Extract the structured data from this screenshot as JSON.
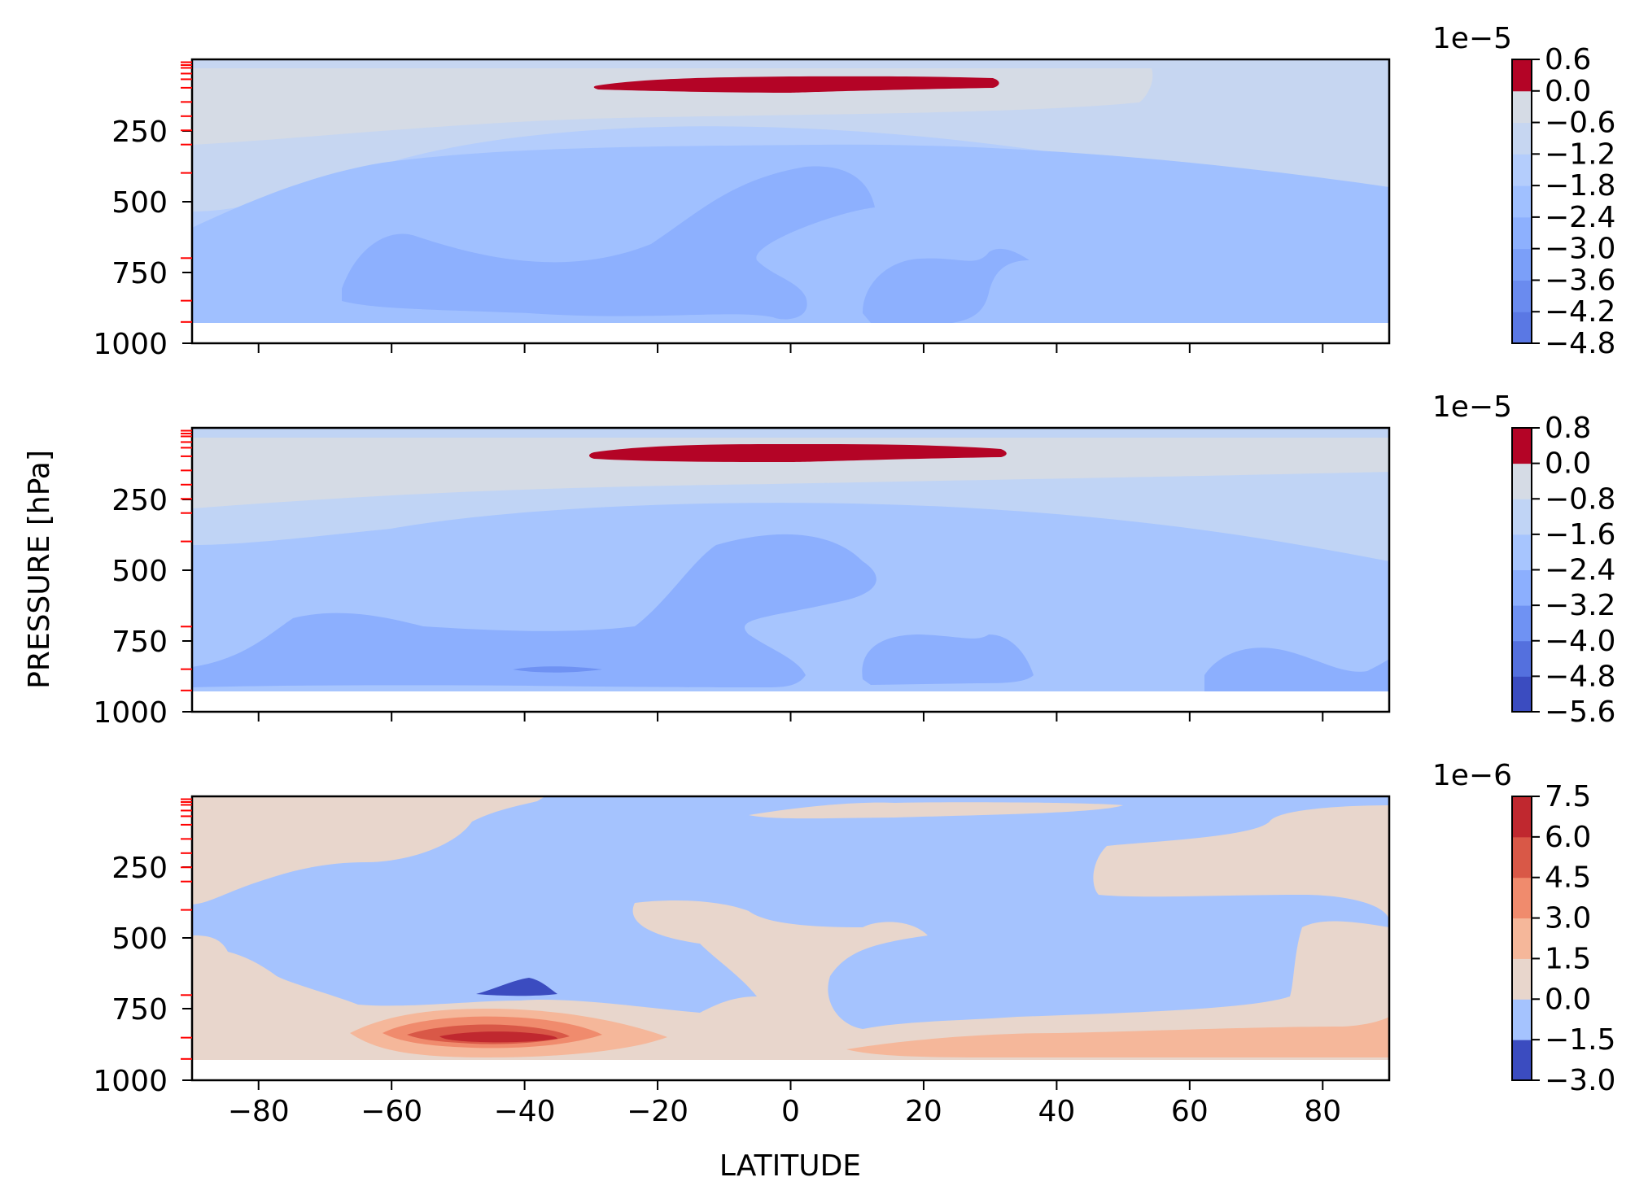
{
  "chart_data": {
    "type": "heatmap",
    "subtype": "filled-contour",
    "xlabel": "LATITUDE",
    "ylabel": "PRESSURE [hPa]",
    "xlim": [
      -90,
      90
    ],
    "ylim": [
      1000,
      0
    ],
    "y_inverted": true,
    "xticks": [
      -80,
      -60,
      -40,
      -20,
      0,
      20,
      40,
      60,
      80
    ],
    "yticks": [
      250,
      500,
      750,
      1000
    ],
    "data_bottom_hPa": 925,
    "model_levels_hPa": [
      10,
      20,
      30,
      50,
      70,
      100,
      150,
      200,
      250,
      300,
      400,
      700,
      850,
      925
    ],
    "level_marker_color": "#ff0000",
    "colormap": "coolwarm",
    "panels": [
      {
        "colorbar": {
          "scale_label": "1e−5",
          "levels": [
            -4.8,
            -4.2,
            -3.6,
            -3.0,
            -2.4,
            -1.8,
            -1.2,
            -0.6,
            0.0,
            0.6
          ],
          "tick_labels": [
            "0.6",
            "0.0",
            "−0.6",
            "−1.2",
            "−1.8",
            "−2.4",
            "−3.0",
            "−3.6",
            "−4.2",
            "−4.8"
          ],
          "colors": [
            "#5a78e4",
            "#6a8bef",
            "#7b9ff9",
            "#8db0fe",
            "#a0c0ff",
            "#b4cdfc",
            "#c6d6f1",
            "#d5dbe5",
            "#b40426"
          ]
        },
        "regions": [
          {
            "level_index": 8,
            "min_lat": -30,
            "max_lat": 31,
            "p_top": 75,
            "p_bottom": 105,
            "description": "positive band near 90 hPa"
          },
          {
            "level_index": 6,
            "min_lat": -90,
            "max_lat": 55,
            "p_top": 10,
            "p_bottom": 300
          },
          {
            "level_index": 4,
            "min_lat": -65,
            "max_lat": 13,
            "p_top": 450,
            "p_bottom": 900
          },
          {
            "level_index": 3,
            "min_lat": -60,
            "max_lat": -20,
            "p_top": 620,
            "p_bottom": 880
          },
          {
            "level_index": 3,
            "min_lat": 10,
            "max_lat": 35,
            "p_top": 680,
            "p_bottom": 910
          }
        ]
      },
      {
        "colorbar": {
          "scale_label": "1e−5",
          "levels": [
            -5.6,
            -4.8,
            -4.0,
            -3.2,
            -2.4,
            -1.6,
            -0.8,
            0.0,
            0.8
          ],
          "tick_labels": [
            "0.8",
            "0.0",
            "−0.8",
            "−1.6",
            "−2.4",
            "−3.2",
            "−4.0",
            "−4.8",
            "−5.6"
          ],
          "colors": [
            "#3b4cc0",
            "#5470de",
            "#6f92f3",
            "#8caffe",
            "#a7c5fe",
            "#c0d4f5",
            "#d5dbe5",
            "#b40426"
          ]
        },
        "regions": [
          {
            "level_index": 7,
            "min_lat": -30,
            "max_lat": 32,
            "p_top": 65,
            "p_bottom": 120
          },
          {
            "level_index": 5,
            "min_lat": -90,
            "max_lat": 90,
            "p_top": 10,
            "p_bottom": 400
          },
          {
            "level_index": 3,
            "min_lat": -70,
            "max_lat": 13,
            "p_top": 380,
            "p_bottom": 910
          },
          {
            "level_index": 2,
            "min_lat": -45,
            "max_lat": -18,
            "p_top": 830,
            "p_bottom": 860
          }
        ]
      },
      {
        "colorbar": {
          "scale_label": "1e−6",
          "levels": [
            -3.0,
            -1.5,
            0.0,
            1.5,
            3.0,
            4.5,
            6.0,
            7.5
          ],
          "tick_labels": [
            "7.5",
            "6.0",
            "4.5",
            "3.0",
            "1.5",
            "0.0",
            "−1.5",
            "−3.0"
          ],
          "colors": [
            "#3b4cc0",
            "#a5c3fe",
            "#e8d6cc",
            "#f5b79a",
            "#f08b6d",
            "#d95847",
            "#c0282f"
          ]
        },
        "regions": [
          {
            "level_index": 2,
            "description": "weak positive background"
          },
          {
            "level_index": 1,
            "min_lat": -90,
            "max_lat": 90,
            "p_top": 10,
            "p_bottom": 850,
            "description": "broad negative region"
          },
          {
            "level_index": 6,
            "min_lat": -48,
            "max_lat": -35,
            "p_top": 840,
            "p_bottom": 865,
            "description": "positive maximum near -42"
          },
          {
            "level_index": 0,
            "min_lat": -47,
            "max_lat": -36,
            "p_top": 640,
            "p_bottom": 700,
            "description": "negative minimum near -40"
          }
        ]
      }
    ]
  }
}
